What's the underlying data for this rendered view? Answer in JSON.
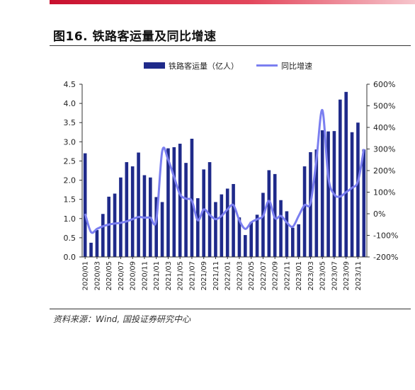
{
  "header": {
    "title": "图16. 铁路客运量及同比增速"
  },
  "footer": {
    "source": "资料来源：Wind, 国投证券研究中心"
  },
  "colors": {
    "bar": "#1f2a8a",
    "line": "#7b7ff0",
    "accent": "#c8102e"
  },
  "chart_data": {
    "type": "bar",
    "title": "",
    "legend_position": "top",
    "grid": false,
    "categories": [
      "2020/01",
      "2020/02",
      "2020/03",
      "2020/04",
      "2020/05",
      "2020/06",
      "2020/07",
      "2020/08",
      "2020/09",
      "2020/10",
      "2020/11",
      "2020/12",
      "2021/01",
      "2021/02",
      "2021/03",
      "2021/04",
      "2021/05",
      "2021/06",
      "2021/07",
      "2021/08",
      "2021/09",
      "2021/10",
      "2021/11",
      "2021/12",
      "2022/01",
      "2022/02",
      "2022/03",
      "2022/04",
      "2022/05",
      "2022/06",
      "2022/07",
      "2022/08",
      "2022/09",
      "2022/10",
      "2022/11",
      "2022/12",
      "2023/01",
      "2023/02",
      "2023/03",
      "2023/04",
      "2023/05",
      "2023/06",
      "2023/07",
      "2023/08",
      "2023/09",
      "2023/10",
      "2023/11",
      "2023/12"
    ],
    "x_tick_labels": [
      "2020/01",
      "2020/03",
      "2020/05",
      "2020/07",
      "2020/09",
      "2020/11",
      "2021/01",
      "2021/03",
      "2021/05",
      "2021/07",
      "2021/09",
      "2021/11",
      "2022/01",
      "2022/03",
      "2022/05",
      "2022/07",
      "2022/09",
      "2022/11",
      "2023/01",
      "2023/03",
      "2023/05",
      "2023/07",
      "2023/09",
      "2023/11"
    ],
    "series": [
      {
        "name": "铁路客运量（亿人）",
        "type": "bar",
        "axis": "left",
        "values": [
          2.7,
          0.37,
          0.7,
          1.12,
          1.57,
          1.65,
          2.07,
          2.47,
          2.36,
          2.72,
          2.13,
          2.07,
          1.56,
          1.43,
          2.83,
          2.86,
          2.95,
          2.45,
          3.08,
          1.53,
          2.28,
          2.47,
          1.43,
          1.63,
          1.78,
          1.9,
          1.03,
          0.57,
          0.91,
          1.1,
          1.67,
          2.26,
          2.16,
          1.48,
          1.19,
          0.76,
          0.85,
          2.36,
          2.73,
          2.8,
          3.3,
          3.27,
          3.28,
          4.1,
          4.3,
          3.25,
          3.5,
          2.8
        ]
      },
      {
        "name": "同比增速",
        "type": "line",
        "axis": "right",
        "values": [
          0,
          -85,
          -70,
          -58,
          -50,
          -45,
          -42,
          -35,
          -25,
          -15,
          -18,
          -18,
          -30,
          290,
          250,
          170,
          90,
          70,
          60,
          -30,
          20,
          -5,
          -25,
          -10,
          20,
          40,
          -30,
          -70,
          -40,
          -25,
          -10,
          60,
          -20,
          -10,
          -40,
          -60,
          -10,
          40,
          50,
          250,
          480,
          170,
          90,
          80,
          100,
          120,
          150,
          300
        ]
      }
    ],
    "y_left": {
      "label": "",
      "ylim": [
        0,
        4.5
      ],
      "ticks": [
        "0.0",
        "0.5",
        "1.0",
        "1.5",
        "2.0",
        "2.5",
        "3.0",
        "3.5",
        "4.0",
        "4.5"
      ]
    },
    "y_right": {
      "label": "",
      "ylim": [
        -200,
        600
      ],
      "ticks": [
        "-200%",
        "-100%",
        "0%",
        "100%",
        "200%",
        "300%",
        "400%",
        "500%",
        "600%"
      ]
    }
  }
}
